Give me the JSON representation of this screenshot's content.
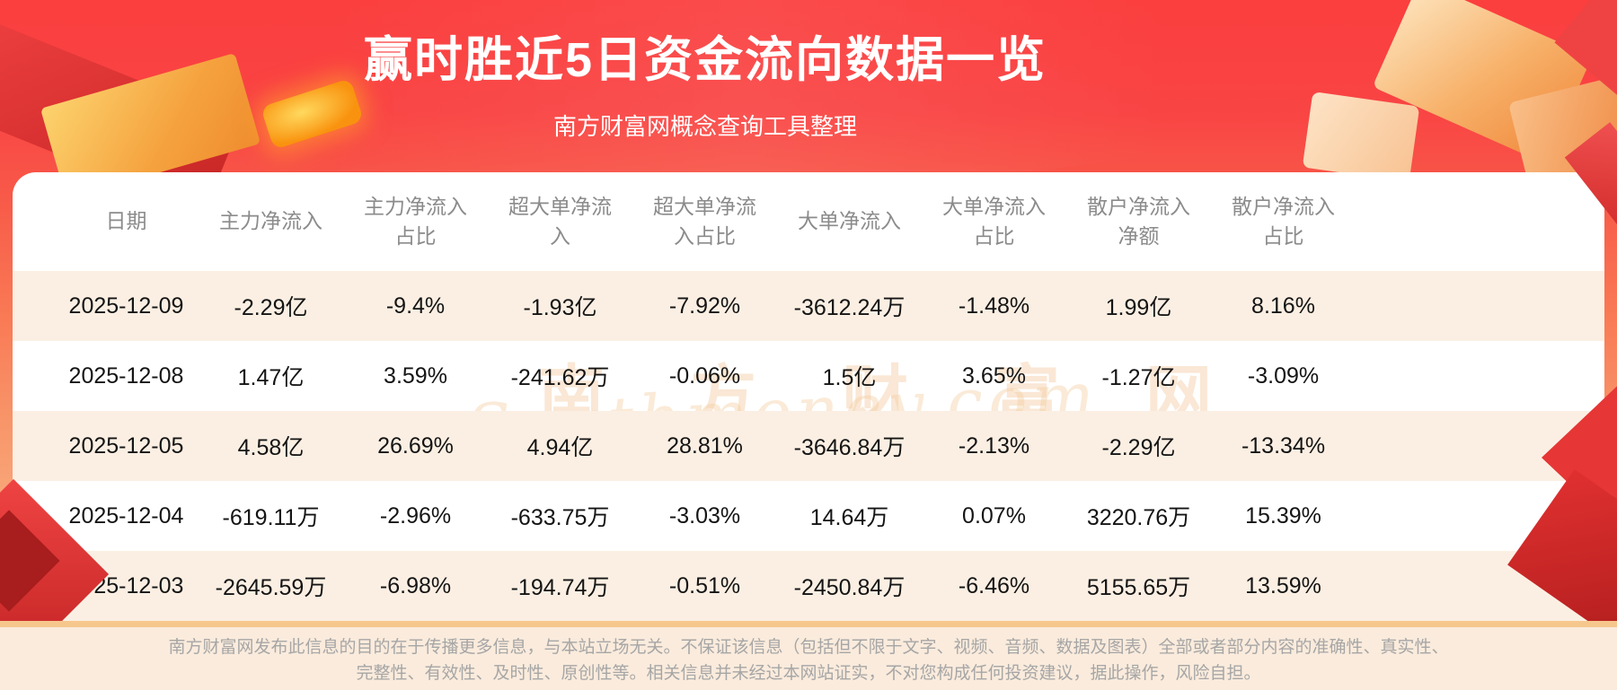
{
  "header": {
    "title": "赢时胜近5日资金流向数据一览",
    "subtitle": "南方财富网概念查询工具整理"
  },
  "chart_data": {
    "type": "table",
    "title": "赢时胜近5日资金流向数据一览",
    "subtitle": "南方财富网概念查询工具整理",
    "columns": [
      "日期",
      "主力净流入",
      "主力净流入占比",
      "超大单净流入",
      "超大单净流入占比",
      "大单净流入",
      "大单净流入占比",
      "散户净流入净额",
      "散户净流入占比"
    ],
    "rows": [
      [
        "2025-12-09",
        "-2.29亿",
        "-9.4%",
        "-1.93亿",
        "-7.92%",
        "-3612.24万",
        "-1.48%",
        "1.99亿",
        "8.16%"
      ],
      [
        "2025-12-08",
        "1.47亿",
        "3.59%",
        "-241.62万",
        "-0.06%",
        "1.5亿",
        "3.65%",
        "-1.27亿",
        "-3.09%"
      ],
      [
        "2025-12-05",
        "4.58亿",
        "26.69%",
        "4.94亿",
        "28.81%",
        "-3646.84万",
        "-2.13%",
        "-2.29亿",
        "-13.34%"
      ],
      [
        "2025-12-04",
        "-619.11万",
        "-2.96%",
        "-633.75万",
        "-3.03%",
        "14.64万",
        "0.07%",
        "3220.76万",
        "15.39%"
      ],
      [
        "2025-12-03",
        "-2645.59万",
        "-6.98%",
        "-194.74万",
        "-0.51%",
        "-2450.84万",
        "-6.46%",
        "5155.65万",
        "13.59%"
      ]
    ]
  },
  "watermark": {
    "cn": "南方财富网",
    "en": "Southmoney.com"
  },
  "footer": {
    "line1": "南方财富网发布此信息的目的在于传播更多信息，与本站立场无关。不保证该信息（包括但不限于文字、视频、音频、数据及图表）全部或者部分内容的准确性、真实性、",
    "line2": "完整性、有效性、及时性、原创性等。相关信息并未经过本网站证实，不对您构成任何投资建议，据此操作，风险自担。"
  },
  "colors": {
    "accent_red": "#f94242",
    "title_text": "#ffffff",
    "header_text": "#8b8b8b",
    "row_alt": "#fbefe3",
    "divider": "#f6c78d",
    "footer_bg": "#faebdc"
  }
}
